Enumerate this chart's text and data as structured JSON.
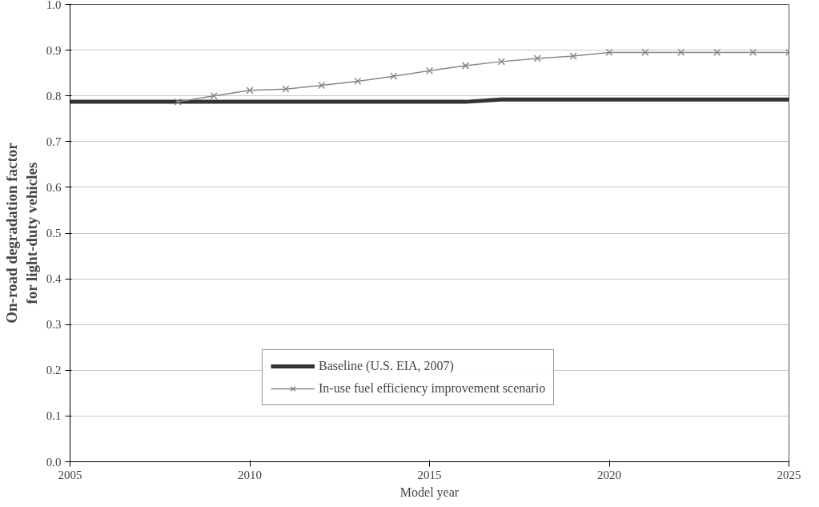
{
  "chart_data": {
    "type": "line",
    "xlabel": "Model year",
    "ylabel": "On-road degradation factor\nfor light-duty vehicles",
    "xlim": [
      2005,
      2025
    ],
    "xticks": [
      2005,
      2010,
      2015,
      2020,
      2025
    ],
    "ylim": [
      0,
      1.0
    ],
    "yticks": [
      {
        "value": 0,
        "label": "0.0"
      },
      0.1,
      0.2,
      0.3,
      0.4,
      0.5,
      0.6,
      0.7,
      0.8,
      0.9,
      {
        "value": 1.0,
        "label": "1.0"
      }
    ],
    "grid": "y",
    "legend": "bottom",
    "series": [
      {
        "name": "Baseline (U.S. EIA, 2007)",
        "color": "#333333",
        "marker": "none",
        "x": [
          2005,
          2016,
          2017,
          2025
        ],
        "values": [
          0.787,
          0.787,
          0.792,
          0.792
        ]
      },
      {
        "name": "In-use fuel efficiency improvement scenario",
        "color": "#888888",
        "marker": "cross",
        "x": [
          2008,
          2009,
          2010,
          2011,
          2012,
          2013,
          2014,
          2015,
          2016,
          2017,
          2018,
          2019,
          2020,
          2021,
          2022,
          2023,
          2024,
          2025
        ],
        "values": [
          0.787,
          0.8,
          0.812,
          0.815,
          0.823,
          0.832,
          0.843,
          0.855,
          0.866,
          0.875,
          0.882,
          0.887,
          0.895,
          0.895,
          0.895,
          0.895,
          0.895,
          0.895
        ]
      }
    ]
  }
}
